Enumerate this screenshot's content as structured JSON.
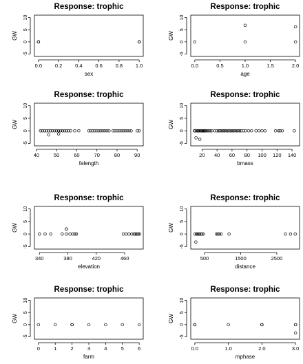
{
  "chart_data": [
    {
      "type": "scatter",
      "title": "Response: trophic",
      "xlabel": "sex",
      "ylabel": "GW",
      "xlim": [
        -0.04,
        1.04
      ],
      "ylim": [
        -6,
        11
      ],
      "xticks": [
        0.0,
        0.2,
        0.4,
        0.6,
        0.8,
        1.0
      ],
      "xtick_labels": [
        "0.0",
        "0.2",
        "0.4",
        "0.6",
        "0.8",
        "1.0"
      ],
      "yticks": [
        -5,
        0,
        5,
        10
      ],
      "ytick_labels": [
        "-5",
        "0",
        "5",
        "10"
      ],
      "points": [
        [
          0,
          0
        ],
        [
          0,
          0
        ],
        [
          0,
          0
        ],
        [
          1,
          0
        ],
        [
          1,
          0
        ],
        [
          1,
          0
        ]
      ]
    },
    {
      "type": "scatter",
      "title": "Response: trophic",
      "xlabel": "age",
      "ylabel": "GW",
      "xlim": [
        -0.08,
        2.08
      ],
      "ylim": [
        -6,
        11
      ],
      "xticks": [
        0.0,
        0.5,
        1.0,
        1.5,
        2.0
      ],
      "xtick_labels": [
        "0.0",
        "0.5",
        "1.0",
        "1.5",
        "2.0"
      ],
      "yticks": [
        -5,
        0,
        5,
        10
      ],
      "ytick_labels": [
        "-5",
        "0",
        "5",
        "10"
      ],
      "points": [
        [
          0,
          0
        ],
        [
          1,
          0
        ],
        [
          1,
          6.8
        ],
        [
          2,
          0
        ],
        [
          2,
          6.2
        ]
      ]
    },
    {
      "type": "scatter",
      "title": "Response: trophic",
      "xlabel": "falength",
      "ylabel": "GW",
      "xlim": [
        39,
        93
      ],
      "ylim": [
        -6,
        11
      ],
      "xticks": [
        40,
        50,
        60,
        70,
        80,
        90
      ],
      "xtick_labels": [
        "40",
        "50",
        "60",
        "70",
        "80",
        "90"
      ],
      "yticks": [
        -5,
        0,
        5,
        10
      ],
      "ytick_labels": [
        "-5",
        "0",
        "5",
        "10"
      ],
      "points": [
        [
          42,
          0
        ],
        [
          43,
          0
        ],
        [
          44,
          0
        ],
        [
          45,
          0
        ],
        [
          46,
          0
        ],
        [
          46,
          -1.6
        ],
        [
          47,
          0
        ],
        [
          48,
          0
        ],
        [
          49,
          0
        ],
        [
          50,
          0
        ],
        [
          51,
          0
        ],
        [
          51,
          -1.2
        ],
        [
          52,
          0
        ],
        [
          53,
          0
        ],
        [
          54,
          0
        ],
        [
          55,
          0
        ],
        [
          56,
          0
        ],
        [
          57,
          0
        ],
        [
          59,
          0
        ],
        [
          61,
          0
        ],
        [
          66,
          0
        ],
        [
          67,
          0
        ],
        [
          68,
          0
        ],
        [
          69,
          0
        ],
        [
          70,
          0
        ],
        [
          71,
          0
        ],
        [
          72,
          0
        ],
        [
          73,
          0
        ],
        [
          74,
          0
        ],
        [
          75,
          0
        ],
        [
          76,
          0
        ],
        [
          78,
          0
        ],
        [
          79,
          0
        ],
        [
          80,
          0
        ],
        [
          81,
          0
        ],
        [
          82,
          0
        ],
        [
          83,
          0
        ],
        [
          84,
          0
        ],
        [
          85,
          0
        ],
        [
          86,
          0
        ],
        [
          87,
          0
        ],
        [
          90,
          0
        ],
        [
          91,
          0
        ]
      ]
    },
    {
      "type": "scatter",
      "title": "Response: trophic",
      "xlabel": "bmass",
      "ylabel": "GW",
      "xlim": [
        5,
        150
      ],
      "ylim": [
        -6,
        11
      ],
      "xticks": [
        20,
        40,
        60,
        80,
        100,
        120,
        140
      ],
      "xtick_labels": [
        "20",
        "40",
        "60",
        "80",
        "100",
        "120",
        "140"
      ],
      "yticks": [
        -5,
        0,
        5,
        10
      ],
      "ytick_labels": [
        "-5",
        "0",
        "5",
        "10"
      ],
      "points": [
        [
          10,
          0
        ],
        [
          11,
          0
        ],
        [
          12,
          -2.8
        ],
        [
          13,
          0
        ],
        [
          14,
          0
        ],
        [
          15,
          0
        ],
        [
          16,
          0
        ],
        [
          17,
          -3.4
        ],
        [
          18,
          0
        ],
        [
          19,
          0
        ],
        [
          20,
          0
        ],
        [
          21,
          0
        ],
        [
          22,
          0
        ],
        [
          23,
          0
        ],
        [
          24,
          0
        ],
        [
          25,
          0
        ],
        [
          27,
          0
        ],
        [
          29,
          0
        ],
        [
          31,
          0
        ],
        [
          33,
          0
        ],
        [
          37,
          0
        ],
        [
          40,
          0
        ],
        [
          42,
          0
        ],
        [
          44,
          0
        ],
        [
          46,
          0
        ],
        [
          48,
          0
        ],
        [
          50,
          0
        ],
        [
          52,
          0
        ],
        [
          54,
          0
        ],
        [
          56,
          0
        ],
        [
          58,
          0
        ],
        [
          60,
          0
        ],
        [
          62,
          0
        ],
        [
          64,
          0
        ],
        [
          66,
          0
        ],
        [
          68,
          0
        ],
        [
          70,
          0
        ],
        [
          72,
          0
        ],
        [
          75,
          0
        ],
        [
          78,
          0
        ],
        [
          82,
          0
        ],
        [
          86,
          0
        ],
        [
          92,
          0
        ],
        [
          96,
          0
        ],
        [
          100,
          0
        ],
        [
          104,
          0
        ],
        [
          118,
          0
        ],
        [
          122,
          0
        ],
        [
          124,
          0
        ],
        [
          127,
          0
        ],
        [
          143,
          0
        ]
      ]
    },
    {
      "type": "scatter",
      "title": "Response: trophic",
      "xlabel": "elevation",
      "ylabel": "GW",
      "xlim": [
        333,
        486
      ],
      "ylim": [
        -6,
        11
      ],
      "xticks": [
        340,
        380,
        420,
        460
      ],
      "xtick_labels": [
        "340",
        "380",
        "420",
        "460"
      ],
      "yticks": [
        -5,
        0,
        5,
        10
      ],
      "ytick_labels": [
        "-5",
        "0",
        "5",
        "10"
      ],
      "points": [
        [
          340,
          0
        ],
        [
          348,
          0
        ],
        [
          356,
          0
        ],
        [
          372,
          0
        ],
        [
          378,
          2
        ],
        [
          378,
          2
        ],
        [
          378,
          0
        ],
        [
          383,
          0
        ],
        [
          387,
          0
        ],
        [
          390,
          0
        ],
        [
          392,
          0
        ],
        [
          458,
          0
        ],
        [
          462,
          0
        ],
        [
          466,
          0
        ],
        [
          470,
          0
        ],
        [
          473,
          0
        ],
        [
          475,
          0
        ],
        [
          477,
          0
        ],
        [
          479,
          0
        ],
        [
          481,
          0
        ]
      ]
    },
    {
      "type": "scatter",
      "title": "Response: trophic",
      "xlabel": "distance",
      "ylabel": "GW",
      "xlim": [
        120,
        3130
      ],
      "ylim": [
        -6,
        11
      ],
      "xticks": [
        500,
        1500,
        2500
      ],
      "xtick_labels": [
        "500",
        "1500",
        "2500"
      ],
      "yticks": [
        -5,
        0,
        5,
        10
      ],
      "ytick_labels": [
        "-5",
        "0",
        "5",
        "10"
      ],
      "points": [
        [
          240,
          0
        ],
        [
          260,
          -3.2
        ],
        [
          280,
          0
        ],
        [
          300,
          0
        ],
        [
          330,
          0
        ],
        [
          360,
          0
        ],
        [
          400,
          0
        ],
        [
          430,
          0
        ],
        [
          470,
          0
        ],
        [
          830,
          0
        ],
        [
          870,
          0
        ],
        [
          910,
          0
        ],
        [
          960,
          0
        ],
        [
          1180,
          0
        ],
        [
          2740,
          0
        ],
        [
          2880,
          0
        ],
        [
          3010,
          0
        ]
      ]
    },
    {
      "type": "scatter",
      "title": "Response: trophic",
      "xlabel": "farm",
      "ylabel": "GW",
      "xlim": [
        -0.24,
        6.24
      ],
      "ylim": [
        -6,
        11
      ],
      "xticks": [
        0,
        1,
        2,
        3,
        4,
        5,
        6
      ],
      "xtick_labels": [
        "0",
        "1",
        "2",
        "3",
        "4",
        "5",
        "6"
      ],
      "yticks": [
        -5,
        0,
        5,
        10
      ],
      "ytick_labels": [
        "-5",
        "0",
        "5",
        "10"
      ],
      "points": [
        [
          0,
          0
        ],
        [
          1,
          0
        ],
        [
          2,
          0
        ],
        [
          2,
          0
        ],
        [
          2,
          0
        ],
        [
          3,
          0
        ],
        [
          4,
          0
        ],
        [
          5,
          0
        ],
        [
          6,
          0
        ]
      ]
    },
    {
      "type": "scatter",
      "title": "Response: trophic",
      "xlabel": "mphase",
      "ylabel": "GW",
      "xlim": [
        -0.12,
        3.12
      ],
      "ylim": [
        -6,
        11
      ],
      "xticks": [
        0.0,
        1.0,
        2.0,
        3.0
      ],
      "xtick_labels": [
        "0.0",
        "1.0",
        "2.0",
        "3.0"
      ],
      "yticks": [
        -5,
        0,
        5,
        10
      ],
      "ytick_labels": [
        "-5",
        "0",
        "5",
        "10"
      ],
      "points": [
        [
          0,
          0
        ],
        [
          0,
          0
        ],
        [
          0,
          0
        ],
        [
          1,
          0
        ],
        [
          2,
          0
        ],
        [
          2,
          0
        ],
        [
          2,
          0
        ],
        [
          3,
          0
        ],
        [
          3,
          0
        ],
        [
          3,
          -3.4
        ]
      ]
    }
  ]
}
